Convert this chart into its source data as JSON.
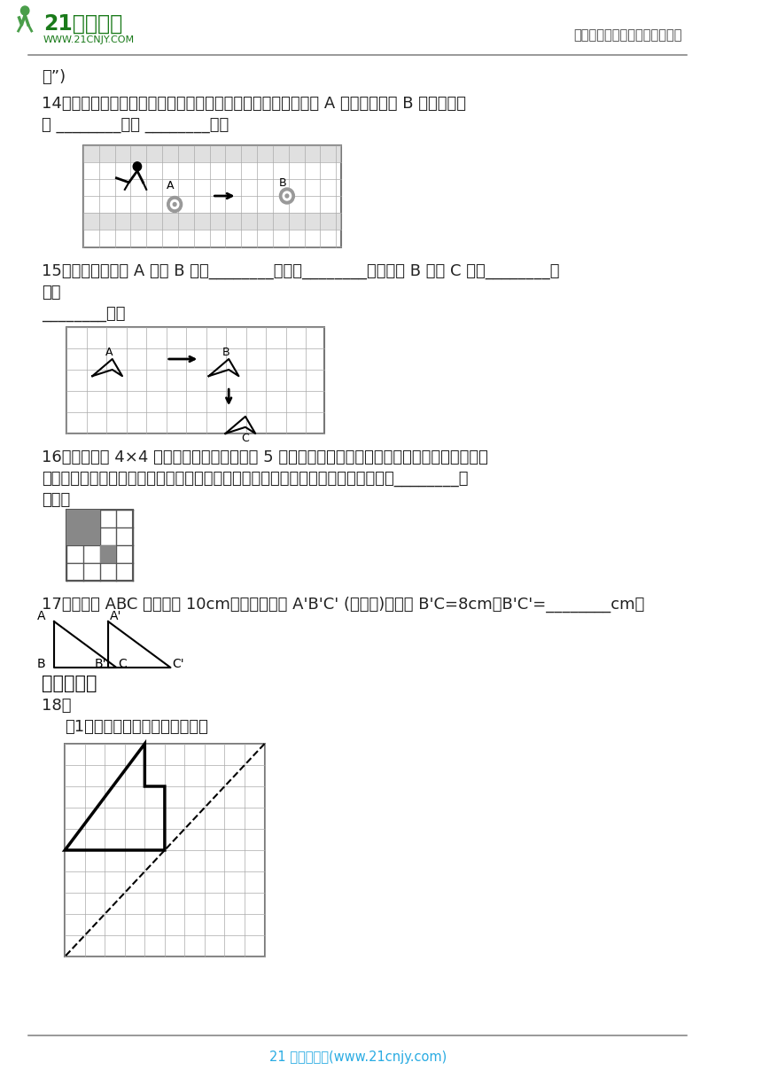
{
  "bg_color": "#ffffff",
  "header_right": "中小学教育资源及组卷应用平台",
  "footer_text": "21 世纪教育网(www.21cnjy.com)",
  "footer_text_color": "#29abe2",
  "trans14": "转”)",
  "line14": "14．冬奥会冰壶项目展现了一种动静之美。如下图所示，冰壶从 A 位置平移到了 B 位置，冰壶",
  "line14b": "向 ________平移 ________格。",
  "line15": "15．如下图，由图 A 到图 B 是向________平移了________格，由图 B 到图 C 是向________平",
  "line15b": "移了",
  "line15c": "________格。",
  "line16": "16．如图，在 4×4 的格子图中，已将图中的 5 个小正方形涂上阴影，再从其余小正方形中任选一",
  "line16b": "个涂上阴影，使得整个阴影部分组成的图形是轴对称图形。符合条件的小正方形共有________种",
  "line16c": "情况。",
  "line17": "17．三角形 ABC 向右平移 10cm，得到三角形 A'B'C' (如右图)，已知 B'C=8cm，B'C'=________cm。",
  "line18_header": "四、解答题",
  "line18": "18．",
  "line18a": "（1）请画出下面图形的另一半。",
  "grid_color": "#999999"
}
